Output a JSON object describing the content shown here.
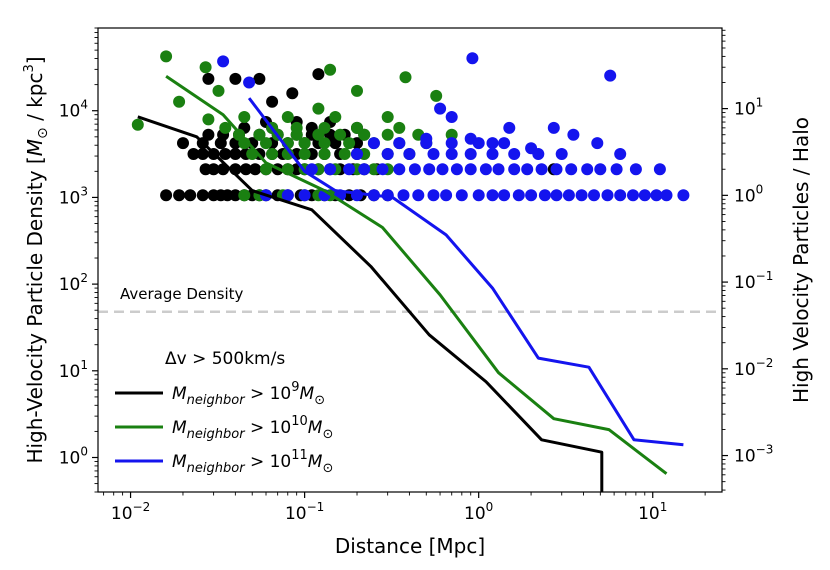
{
  "chart_data": {
    "type": "scatter",
    "x_axis": {
      "label": "Distance [Mpc]",
      "scale": "log",
      "range": [
        0.0065,
        25
      ],
      "ticks": [
        {
          "value": 0.01,
          "base": "10",
          "exp": "−2"
        },
        {
          "value": 0.1,
          "base": "10",
          "exp": "−1"
        },
        {
          "value": 1,
          "base": "10",
          "exp": "0"
        },
        {
          "value": 10,
          "base": "10",
          "exp": "1"
        }
      ]
    },
    "y_axis_left": {
      "label_prefix": "High-Velocity Particle Density [",
      "label_M": "M",
      "label_sun": "⊙",
      "label_mid": " / kpc",
      "label_exp": "3",
      "label_suffix": "]",
      "scale": "log",
      "range": [
        0.4,
        90000
      ],
      "ticks": [
        {
          "value": 1,
          "base": "10",
          "exp": "0"
        },
        {
          "value": 10,
          "base": "10",
          "exp": "1"
        },
        {
          "value": 100,
          "base": "10",
          "exp": "2"
        },
        {
          "value": 1000,
          "base": "10",
          "exp": "3"
        },
        {
          "value": 10000,
          "base": "10",
          "exp": "4"
        }
      ]
    },
    "y_axis_right": {
      "label": "High Velocity Particles / Halo",
      "scale": "log",
      "range": [
        0.00038,
        85
      ],
      "ticks": [
        {
          "value": 0.001,
          "base": "10",
          "exp": "−3"
        },
        {
          "value": 0.01,
          "base": "10",
          "exp": "−2"
        },
        {
          "value": 0.1,
          "base": "10",
          "exp": "−1"
        },
        {
          "value": 1,
          "base": "10",
          "exp": "0"
        },
        {
          "value": 10,
          "base": "10",
          "exp": "1"
        }
      ]
    },
    "reference_line": {
      "label": "Average Density",
      "value": 48,
      "color": "#cccccc"
    },
    "legend": {
      "title": "Δv > 500km/s",
      "location": "lower-left",
      "entry_M": "M",
      "entry_sub": "neighbor",
      "entry_gt": " > 10",
      "entry_msun": "M",
      "entry_sun": "⊙"
    },
    "series": [
      {
        "name": "M_neighbor > 10^9 M_sun",
        "exp_label": "9",
        "color": "#000000",
        "line_x": [
          0.011,
          0.024,
          0.05,
          0.11,
          0.24,
          0.52,
          1.1,
          2.3,
          5.1,
          5.1
        ],
        "line_y": [
          8500,
          5000,
          1200,
          720,
          160,
          26,
          7.5,
          1.6,
          1.15,
          0.4
        ],
        "points": [
          [
            0.016,
            1.0
          ],
          [
            0.019,
            1.0
          ],
          [
            0.022,
            1.0
          ],
          [
            0.026,
            1.0
          ],
          [
            0.03,
            1.0
          ],
          [
            0.033,
            1.0
          ],
          [
            0.036,
            1.0
          ],
          [
            0.04,
            1.0
          ],
          [
            0.045,
            1.0
          ],
          [
            0.05,
            1.0
          ],
          [
            0.055,
            1.0
          ],
          [
            0.06,
            1.0
          ],
          [
            0.07,
            1.0
          ],
          [
            0.08,
            1.0
          ],
          [
            0.095,
            1.0
          ],
          [
            0.11,
            1.0
          ],
          [
            0.13,
            1.0
          ],
          [
            0.15,
            1.0
          ],
          [
            0.18,
            1.0
          ],
          [
            0.21,
            1.0
          ],
          [
            0.25,
            1.0
          ],
          [
            0.3,
            1.0
          ],
          [
            0.027,
            2.0
          ],
          [
            0.03,
            2.0
          ],
          [
            0.034,
            2.0
          ],
          [
            0.04,
            2.0
          ],
          [
            0.046,
            2.0
          ],
          [
            0.052,
            2.0
          ],
          [
            0.06,
            2.0
          ],
          [
            0.07,
            2.0
          ],
          [
            0.08,
            2.0
          ],
          [
            0.09,
            2.0
          ],
          [
            0.1,
            2.0
          ],
          [
            0.12,
            2.0
          ],
          [
            0.14,
            2.0
          ],
          [
            0.16,
            2.0
          ],
          [
            0.19,
            2.0
          ],
          [
            0.22,
            2.0
          ],
          [
            0.26,
            2.0
          ],
          [
            2.7,
            2.0
          ],
          [
            0.023,
            3.0
          ],
          [
            0.026,
            3.0
          ],
          [
            0.03,
            3.0
          ],
          [
            0.035,
            3.0
          ],
          [
            0.04,
            3.0
          ],
          [
            0.046,
            3.0
          ],
          [
            0.055,
            3.0
          ],
          [
            0.065,
            3.0
          ],
          [
            0.075,
            3.0
          ],
          [
            0.09,
            3.0
          ],
          [
            0.11,
            3.0
          ],
          [
            0.13,
            3.0
          ],
          [
            0.16,
            3.0
          ],
          [
            0.2,
            3.0
          ],
          [
            0.02,
            4.0
          ],
          [
            0.026,
            4.0
          ],
          [
            0.033,
            4.0
          ],
          [
            0.04,
            4.0
          ],
          [
            0.05,
            4.0
          ],
          [
            0.065,
            4.0
          ],
          [
            0.08,
            4.0
          ],
          [
            0.1,
            4.0
          ],
          [
            0.12,
            4.0
          ],
          [
            0.15,
            4.0
          ],
          [
            0.2,
            4.0
          ],
          [
            0.028,
            5.0
          ],
          [
            0.034,
            5.0
          ],
          [
            0.042,
            5.0
          ],
          [
            0.055,
            5.0
          ],
          [
            0.07,
            5.0
          ],
          [
            0.09,
            5.0
          ],
          [
            0.11,
            5.0
          ],
          [
            0.14,
            5.0
          ],
          [
            0.17,
            5.0
          ],
          [
            0.22,
            5.0
          ],
          [
            0.045,
            6.0
          ],
          [
            0.065,
            6.0
          ],
          [
            0.11,
            6.0
          ],
          [
            0.2,
            6.0
          ],
          [
            0.06,
            7.0
          ],
          [
            0.09,
            7.0
          ],
          [
            0.14,
            7.0
          ],
          [
            0.028,
            22.0
          ],
          [
            0.04,
            22.0
          ],
          [
            0.055,
            22.0
          ],
          [
            0.065,
            12.0
          ],
          [
            0.085,
            15.0
          ],
          [
            0.12,
            25.0
          ]
        ]
      },
      {
        "name": "M_neighbor > 10^10 M_sun",
        "exp_label": "10",
        "color": "#1a8011",
        "line_x": [
          0.016,
          0.034,
          0.06,
          0.13,
          0.28,
          0.6,
          1.3,
          2.7,
          5.6,
          12
        ],
        "line_y": [
          25000,
          9000,
          2500,
          1200,
          450,
          75,
          9.5,
          2.8,
          2.1,
          0.65
        ],
        "points": [
          [
            0.011,
            6.5
          ],
          [
            0.016,
            40.0
          ],
          [
            0.027,
            30.0
          ],
          [
            0.032,
            16.0
          ],
          [
            0.019,
            12.0
          ],
          [
            0.028,
            7.5
          ],
          [
            0.035,
            6.0
          ],
          [
            0.042,
            5.0
          ],
          [
            0.045,
            1.0
          ],
          [
            0.055,
            1.0
          ],
          [
            0.075,
            1.0
          ],
          [
            0.1,
            1.0
          ],
          [
            0.12,
            1.0
          ],
          [
            0.14,
            1.0
          ],
          [
            0.06,
            2.0
          ],
          [
            0.08,
            2.0
          ],
          [
            0.1,
            2.0
          ],
          [
            0.12,
            2.0
          ],
          [
            0.15,
            2.0
          ],
          [
            0.2,
            2.0
          ],
          [
            0.25,
            2.0
          ],
          [
            0.3,
            2.0
          ],
          [
            0.05,
            3.0
          ],
          [
            0.065,
            3.0
          ],
          [
            0.08,
            3.0
          ],
          [
            0.1,
            3.0
          ],
          [
            0.13,
            3.0
          ],
          [
            0.17,
            3.0
          ],
          [
            0.22,
            3.0
          ],
          [
            0.3,
            3.0
          ],
          [
            0.4,
            3.0
          ],
          [
            0.045,
            4.0
          ],
          [
            0.06,
            4.0
          ],
          [
            0.08,
            4.0
          ],
          [
            0.1,
            4.0
          ],
          [
            0.13,
            4.0
          ],
          [
            0.18,
            4.0
          ],
          [
            0.25,
            4.0
          ],
          [
            0.35,
            4.0
          ],
          [
            0.5,
            4.0
          ],
          [
            0.055,
            5.0
          ],
          [
            0.07,
            5.0
          ],
          [
            0.09,
            5.0
          ],
          [
            0.12,
            5.0
          ],
          [
            0.16,
            5.0
          ],
          [
            0.22,
            5.0
          ],
          [
            0.3,
            5.0
          ],
          [
            0.45,
            5.0
          ],
          [
            0.7,
            5.0
          ],
          [
            0.065,
            6.0
          ],
          [
            0.09,
            6.0
          ],
          [
            0.13,
            6.0
          ],
          [
            0.2,
            6.0
          ],
          [
            0.35,
            6.0
          ],
          [
            0.045,
            8.0
          ],
          [
            0.08,
            8.0
          ],
          [
            0.15,
            8.0
          ],
          [
            0.3,
            8.0
          ],
          [
            0.14,
            28.0
          ],
          [
            0.38,
            23.0
          ],
          [
            0.57,
            14.0
          ],
          [
            0.2,
            16.0
          ],
          [
            0.12,
            10.0
          ]
        ]
      },
      {
        "name": "M_neighbor > 10^11 M_sun",
        "exp_label": "11",
        "color": "#1414ee",
        "line_x": [
          0.048,
          0.1,
          0.15,
          0.32,
          0.65,
          1.2,
          2.2,
          4.3,
          7.8,
          15
        ],
        "line_y": [
          14000,
          2000,
          1200,
          1000,
          370,
          90,
          14,
          11,
          1.6,
          1.4
        ],
        "points": [
          [
            0.034,
            35.0
          ],
          [
            0.048,
            20.0
          ],
          [
            0.92,
            38.0
          ],
          [
            5.7,
            24.0
          ],
          [
            0.6,
            10.0
          ],
          [
            0.7,
            8.0
          ],
          [
            1.5,
            6.0
          ],
          [
            2.7,
            6.0
          ],
          [
            3.5,
            5.0
          ],
          [
            4.8,
            4.0
          ],
          [
            0.5,
            4.5
          ],
          [
            0.9,
            4.5
          ],
          [
            1.2,
            4.0
          ],
          [
            2.0,
            3.5
          ],
          [
            0.06,
            1.0
          ],
          [
            0.08,
            1.0
          ],
          [
            0.1,
            1.0
          ],
          [
            0.13,
            1.0
          ],
          [
            0.16,
            1.0
          ],
          [
            0.2,
            1.0
          ],
          [
            0.25,
            1.0
          ],
          [
            0.3,
            1.0
          ],
          [
            0.37,
            1.0
          ],
          [
            0.45,
            1.0
          ],
          [
            0.55,
            1.0
          ],
          [
            0.65,
            1.0
          ],
          [
            0.8,
            1.0
          ],
          [
            1.0,
            1.0
          ],
          [
            1.2,
            1.0
          ],
          [
            1.4,
            1.0
          ],
          [
            1.7,
            1.0
          ],
          [
            2.0,
            1.0
          ],
          [
            2.4,
            1.0
          ],
          [
            2.8,
            1.0
          ],
          [
            3.3,
            1.0
          ],
          [
            3.9,
            1.0
          ],
          [
            4.6,
            1.0
          ],
          [
            5.5,
            1.0
          ],
          [
            6.5,
            1.0
          ],
          [
            7.7,
            1.0
          ],
          [
            9.0,
            1.0
          ],
          [
            10.5,
            1.0
          ],
          [
            12.0,
            1.0
          ],
          [
            15.0,
            1.0
          ],
          [
            0.11,
            2.0
          ],
          [
            0.14,
            2.0
          ],
          [
            0.18,
            2.0
          ],
          [
            0.22,
            2.0
          ],
          [
            0.28,
            2.0
          ],
          [
            0.35,
            2.0
          ],
          [
            0.43,
            2.0
          ],
          [
            0.52,
            2.0
          ],
          [
            0.62,
            2.0
          ],
          [
            0.75,
            2.0
          ],
          [
            0.9,
            2.0
          ],
          [
            1.1,
            2.0
          ],
          [
            1.3,
            2.0
          ],
          [
            1.6,
            2.0
          ],
          [
            1.9,
            2.0
          ],
          [
            2.3,
            2.0
          ],
          [
            2.8,
            2.0
          ],
          [
            3.4,
            2.0
          ],
          [
            4.2,
            2.0
          ],
          [
            5.0,
            2.0
          ],
          [
            6.2,
            2.0
          ],
          [
            8.0,
            2.0
          ],
          [
            11.0,
            2.0
          ],
          [
            0.2,
            3.0
          ],
          [
            0.3,
            3.0
          ],
          [
            0.4,
            3.0
          ],
          [
            0.55,
            3.0
          ],
          [
            0.7,
            3.0
          ],
          [
            0.9,
            3.0
          ],
          [
            1.2,
            3.0
          ],
          [
            1.6,
            3.0
          ],
          [
            2.2,
            3.0
          ],
          [
            3.0,
            3.0
          ],
          [
            6.5,
            3.0
          ],
          [
            0.25,
            4.0
          ],
          [
            0.35,
            4.0
          ],
          [
            0.5,
            4.0
          ],
          [
            0.7,
            4.0
          ],
          [
            1.0,
            4.0
          ],
          [
            1.4,
            4.0
          ]
        ]
      }
    ]
  }
}
